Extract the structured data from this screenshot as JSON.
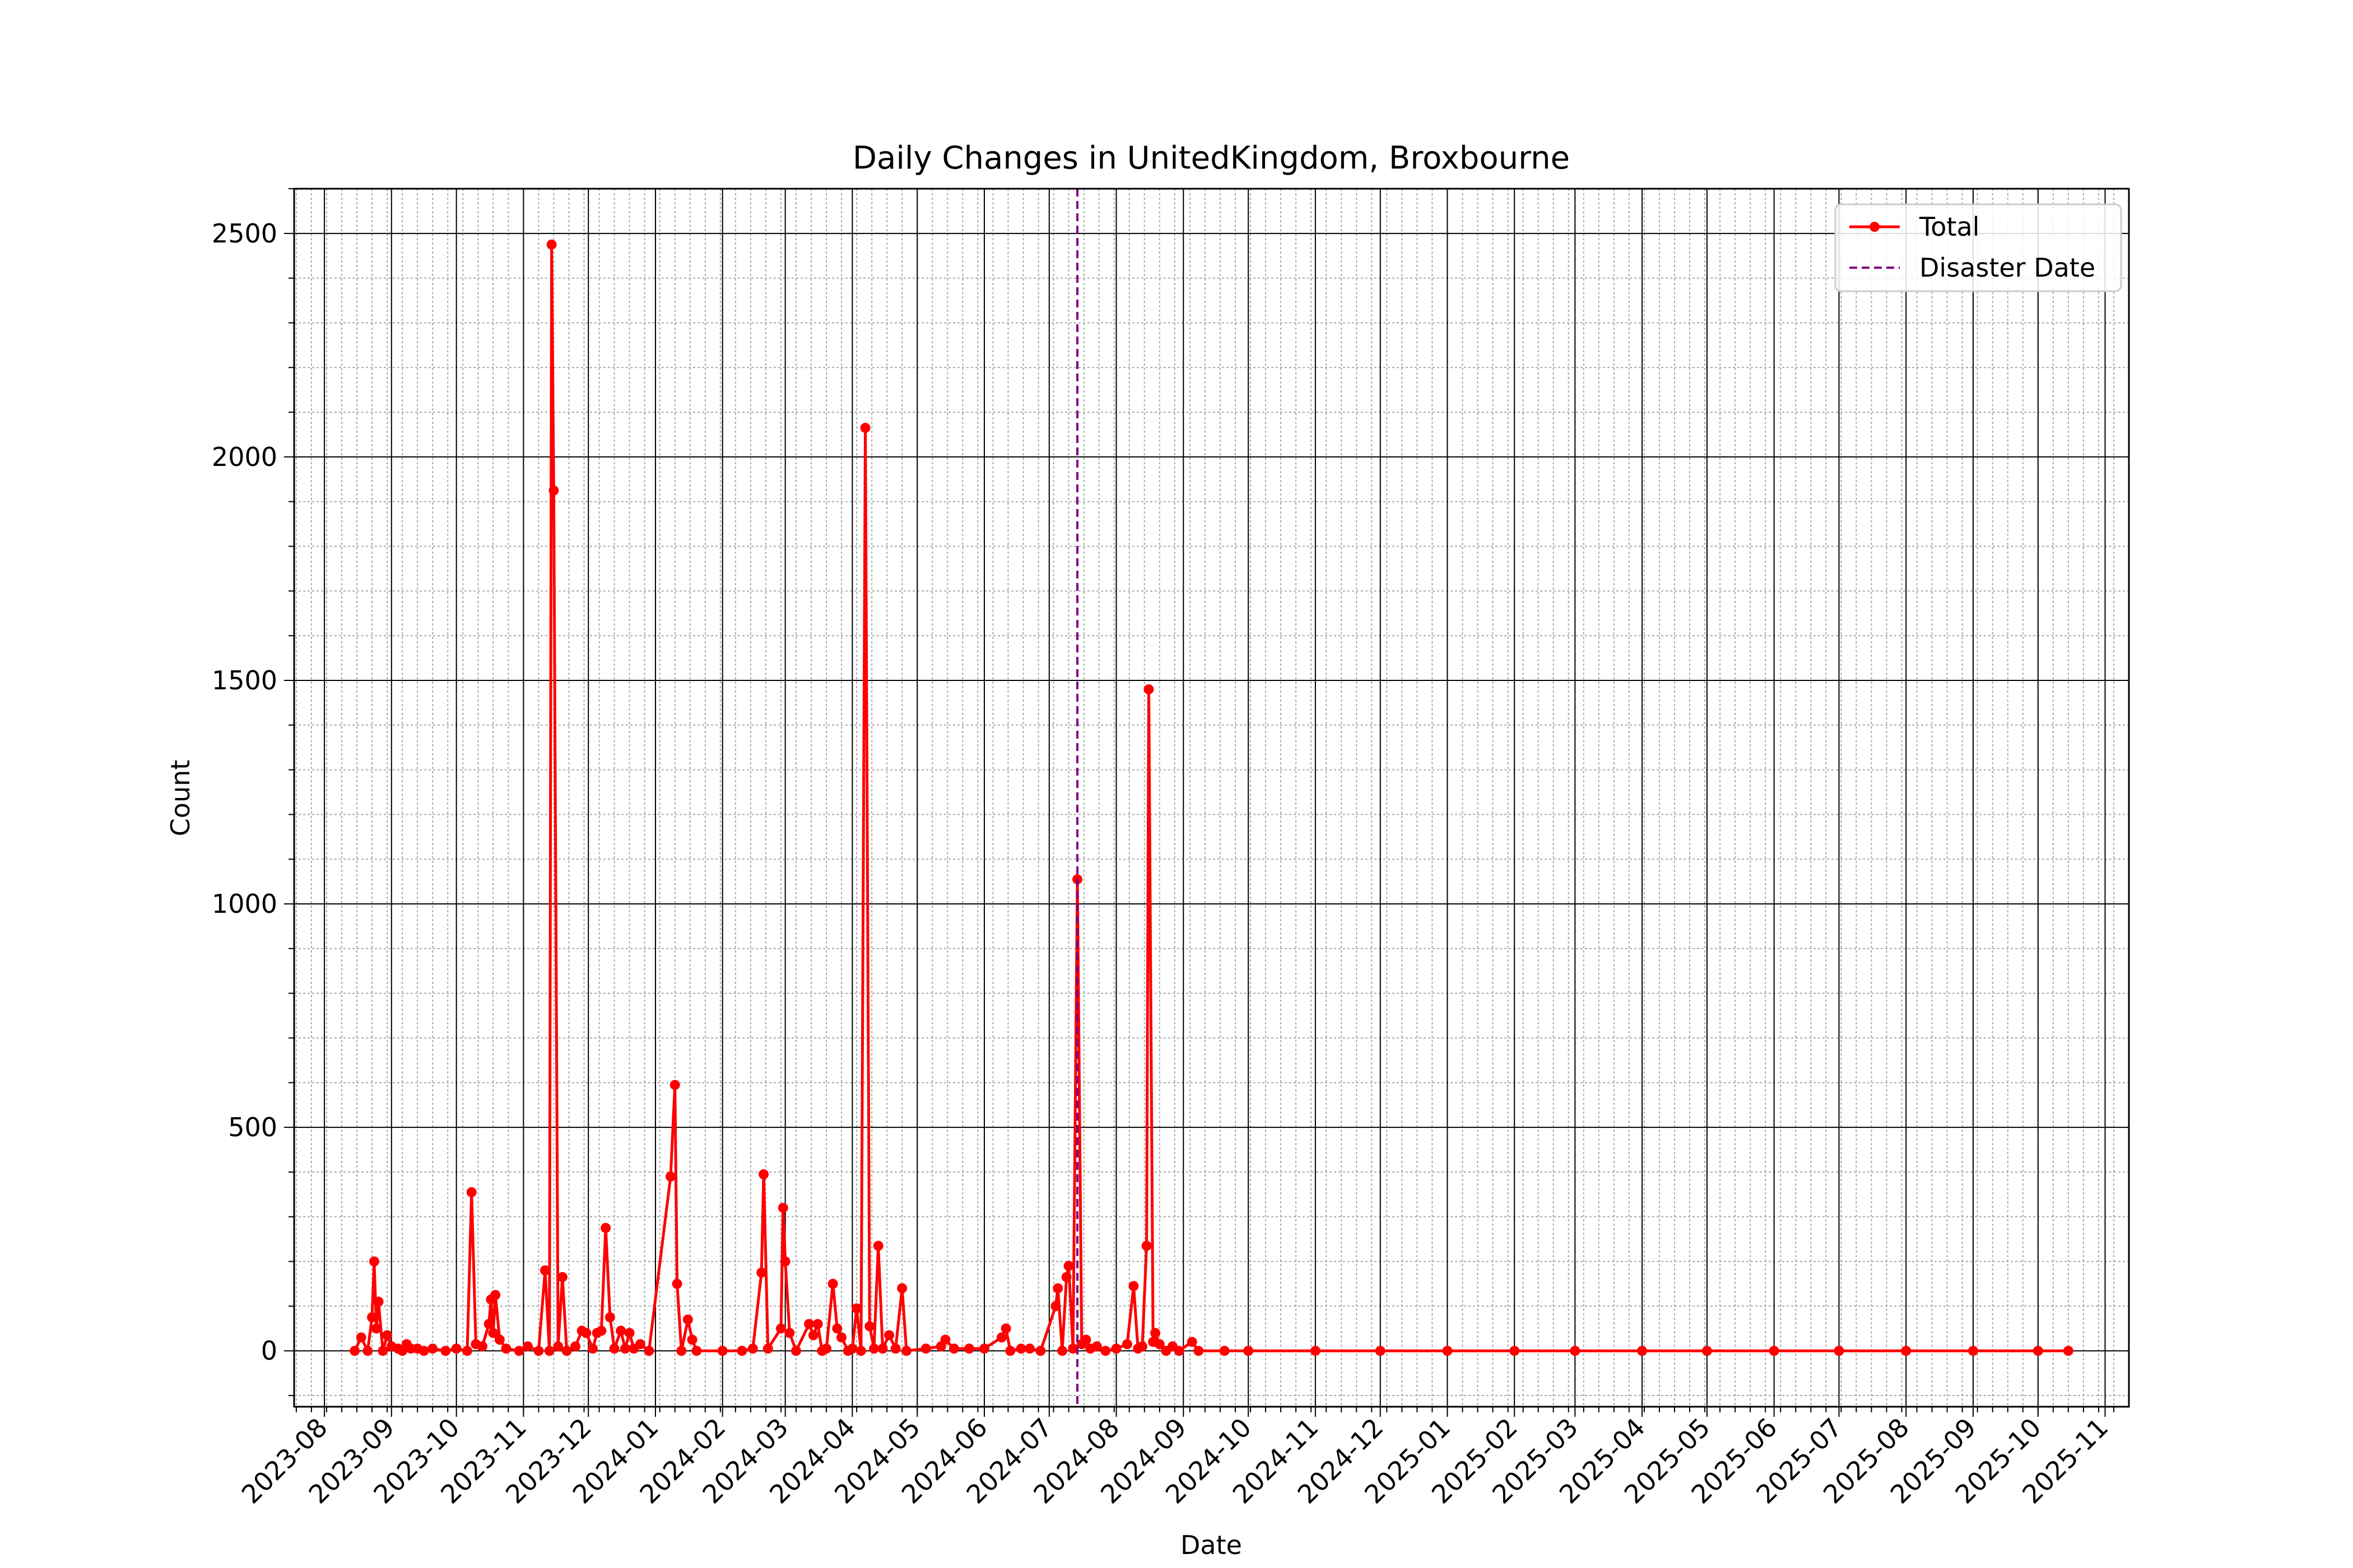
{
  "chart_data": {
    "type": "line",
    "title": "Daily Changes in UnitedKingdom, Broxbourne",
    "xlabel": "Date",
    "ylabel": "Count",
    "ylim": [
      -125,
      2600
    ],
    "xlim": [
      "2023-07-18",
      "2025-11-12"
    ],
    "yticks": [
      0,
      500,
      1000,
      1500,
      2000,
      2500
    ],
    "xticks": [
      "2023-08",
      "2023-09",
      "2023-10",
      "2023-11",
      "2023-12",
      "2024-01",
      "2024-02",
      "2024-03",
      "2024-04",
      "2024-05",
      "2024-06",
      "2024-07",
      "2024-08",
      "2024-09",
      "2024-10",
      "2024-11",
      "2024-12",
      "2025-01",
      "2025-02",
      "2025-03",
      "2025-04",
      "2025-05",
      "2025-06",
      "2025-07",
      "2025-08",
      "2025-09",
      "2025-10",
      "2025-11"
    ],
    "grid": true,
    "legend_position": "top-right",
    "series": [
      {
        "name": "Total",
        "color": "#ff0000",
        "marker": "circle",
        "points": [
          [
            "2023-08-15",
            0
          ],
          [
            "2023-08-18",
            30
          ],
          [
            "2023-08-21",
            0
          ],
          [
            "2023-08-23",
            75
          ],
          [
            "2023-08-24",
            200
          ],
          [
            "2023-08-25",
            50
          ],
          [
            "2023-08-26",
            110
          ],
          [
            "2023-08-28",
            0
          ],
          [
            "2023-08-30",
            35
          ],
          [
            "2023-09-01",
            10
          ],
          [
            "2023-09-04",
            5
          ],
          [
            "2023-09-06",
            0
          ],
          [
            "2023-09-08",
            15
          ],
          [
            "2023-09-10",
            5
          ],
          [
            "2023-09-13",
            5
          ],
          [
            "2023-09-16",
            0
          ],
          [
            "2023-09-20",
            5
          ],
          [
            "2023-09-26",
            0
          ],
          [
            "2023-10-01",
            5
          ],
          [
            "2023-10-06",
            0
          ],
          [
            "2023-10-08",
            355
          ],
          [
            "2023-10-10",
            15
          ],
          [
            "2023-10-13",
            10
          ],
          [
            "2023-10-16",
            60
          ],
          [
            "2023-10-17",
            115
          ],
          [
            "2023-10-18",
            40
          ],
          [
            "2023-10-19",
            125
          ],
          [
            "2023-10-21",
            25
          ],
          [
            "2023-10-24",
            5
          ],
          [
            "2023-10-30",
            0
          ],
          [
            "2023-11-03",
            10
          ],
          [
            "2023-11-08",
            0
          ],
          [
            "2023-11-11",
            180
          ],
          [
            "2023-11-13",
            0
          ],
          [
            "2023-11-14",
            2475
          ],
          [
            "2023-11-15",
            1925
          ],
          [
            "2023-11-17",
            10
          ],
          [
            "2023-11-19",
            165
          ],
          [
            "2023-11-21",
            0
          ],
          [
            "2023-11-25",
            10
          ],
          [
            "2023-11-28",
            45
          ],
          [
            "2023-11-30",
            40
          ],
          [
            "2023-12-03",
            5
          ],
          [
            "2023-12-05",
            40
          ],
          [
            "2023-12-07",
            45
          ],
          [
            "2023-12-09",
            275
          ],
          [
            "2023-12-11",
            75
          ],
          [
            "2023-12-13",
            5
          ],
          [
            "2023-12-16",
            45
          ],
          [
            "2023-12-18",
            5
          ],
          [
            "2023-12-20",
            40
          ],
          [
            "2023-12-22",
            5
          ],
          [
            "2023-12-25",
            15
          ],
          [
            "2023-12-29",
            0
          ],
          [
            "2024-01-08",
            390
          ],
          [
            "2024-01-10",
            595
          ],
          [
            "2024-01-11",
            150
          ],
          [
            "2024-01-13",
            0
          ],
          [
            "2024-01-16",
            70
          ],
          [
            "2024-01-18",
            25
          ],
          [
            "2024-01-20",
            0
          ],
          [
            "2024-02-01",
            0
          ],
          [
            "2024-02-10",
            0
          ],
          [
            "2024-02-15",
            5
          ],
          [
            "2024-02-19",
            175
          ],
          [
            "2024-02-20",
            395
          ],
          [
            "2024-02-22",
            5
          ],
          [
            "2024-02-28",
            50
          ],
          [
            "2024-02-29",
            320
          ],
          [
            "2024-03-01",
            200
          ],
          [
            "2024-03-03",
            40
          ],
          [
            "2024-03-06",
            0
          ],
          [
            "2024-03-12",
            60
          ],
          [
            "2024-03-14",
            35
          ],
          [
            "2024-03-16",
            60
          ],
          [
            "2024-03-18",
            0
          ],
          [
            "2024-03-20",
            5
          ],
          [
            "2024-03-23",
            150
          ],
          [
            "2024-03-25",
            50
          ],
          [
            "2024-03-27",
            30
          ],
          [
            "2024-03-30",
            0
          ],
          [
            "2024-04-01",
            5
          ],
          [
            "2024-04-03",
            95
          ],
          [
            "2024-04-05",
            0
          ],
          [
            "2024-04-07",
            2065
          ],
          [
            "2024-04-09",
            55
          ],
          [
            "2024-04-11",
            5
          ],
          [
            "2024-04-13",
            235
          ],
          [
            "2024-04-15",
            5
          ],
          [
            "2024-04-18",
            35
          ],
          [
            "2024-04-21",
            5
          ],
          [
            "2024-04-24",
            140
          ],
          [
            "2024-04-26",
            0
          ],
          [
            "2024-05-05",
            5
          ],
          [
            "2024-05-12",
            10
          ],
          [
            "2024-05-14",
            25
          ],
          [
            "2024-05-18",
            5
          ],
          [
            "2024-05-25",
            5
          ],
          [
            "2024-06-01",
            5
          ],
          [
            "2024-06-09",
            30
          ],
          [
            "2024-06-11",
            50
          ],
          [
            "2024-06-13",
            0
          ],
          [
            "2024-06-18",
            5
          ],
          [
            "2024-06-22",
            5
          ],
          [
            "2024-06-27",
            0
          ],
          [
            "2024-07-04",
            100
          ],
          [
            "2024-07-05",
            140
          ],
          [
            "2024-07-07",
            0
          ],
          [
            "2024-07-09",
            165
          ],
          [
            "2024-07-10",
            190
          ],
          [
            "2024-07-12",
            5
          ],
          [
            "2024-07-14",
            1055
          ],
          [
            "2024-07-16",
            15
          ],
          [
            "2024-07-18",
            25
          ],
          [
            "2024-07-20",
            5
          ],
          [
            "2024-07-23",
            10
          ],
          [
            "2024-07-27",
            0
          ],
          [
            "2024-08-01",
            5
          ],
          [
            "2024-08-06",
            15
          ],
          [
            "2024-08-09",
            145
          ],
          [
            "2024-08-11",
            5
          ],
          [
            "2024-08-13",
            10
          ],
          [
            "2024-08-15",
            235
          ],
          [
            "2024-08-16",
            1480
          ],
          [
            "2024-08-18",
            20
          ],
          [
            "2024-08-19",
            40
          ],
          [
            "2024-08-21",
            15
          ],
          [
            "2024-08-24",
            0
          ],
          [
            "2024-08-27",
            10
          ],
          [
            "2024-08-30",
            0
          ],
          [
            "2024-09-05",
            20
          ],
          [
            "2024-09-08",
            0
          ],
          [
            "2024-09-20",
            0
          ],
          [
            "2024-10-01",
            0
          ],
          [
            "2024-11-01",
            0
          ],
          [
            "2024-12-01",
            0
          ],
          [
            "2025-01-01",
            0
          ],
          [
            "2025-02-01",
            0
          ],
          [
            "2025-03-01",
            0
          ],
          [
            "2025-04-01",
            0
          ],
          [
            "2025-05-01",
            0
          ],
          [
            "2025-06-01",
            0
          ],
          [
            "2025-07-01",
            0
          ],
          [
            "2025-08-01",
            0
          ],
          [
            "2025-09-01",
            0
          ],
          [
            "2025-10-01",
            0
          ],
          [
            "2025-10-15",
            0
          ]
        ]
      },
      {
        "name": "Disaster Date",
        "type": "vertical-line",
        "color": "#800080",
        "x": "2024-07-14"
      }
    ]
  }
}
